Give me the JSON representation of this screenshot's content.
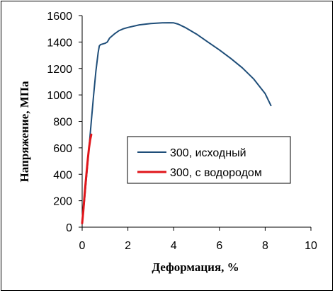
{
  "chart_data": {
    "type": "line",
    "title": "",
    "xlabel": "Деформация, %",
    "ylabel": "Напряжение, МПа",
    "xlim": [
      0,
      10
    ],
    "ylim": [
      0,
      1600
    ],
    "x_ticks": [
      "0",
      "2",
      "4",
      "6",
      "8",
      "10"
    ],
    "y_ticks": [
      "0",
      "200",
      "400",
      "600",
      "800",
      "1000",
      "1200",
      "1400",
      "1600"
    ],
    "grid": false,
    "legend_position": "center-right",
    "series": [
      {
        "name": "300, исходный",
        "color": "#1f4e79",
        "x": [
          0.0,
          0.1,
          0.2,
          0.3,
          0.4,
          0.5,
          0.6,
          0.7,
          0.75,
          0.8,
          1.0,
          1.1,
          1.2,
          1.4,
          1.6,
          1.8,
          2.0,
          2.5,
          3.0,
          3.5,
          3.8,
          4.0,
          4.2,
          4.5,
          5.0,
          5.5,
          6.0,
          6.5,
          7.0,
          7.5,
          8.0,
          8.25
        ],
        "values": [
          30,
          200,
          400,
          600,
          800,
          1000,
          1180,
          1320,
          1370,
          1380,
          1390,
          1400,
          1430,
          1460,
          1485,
          1500,
          1510,
          1530,
          1540,
          1545,
          1546,
          1545,
          1535,
          1510,
          1460,
          1400,
          1340,
          1275,
          1205,
          1120,
          1010,
          920
        ]
      },
      {
        "name": "300, с водородом",
        "color": "#e0161b",
        "x": [
          0.0,
          0.05,
          0.1,
          0.15,
          0.2,
          0.25,
          0.3,
          0.35,
          0.4
        ],
        "values": [
          30,
          120,
          230,
          330,
          430,
          520,
          600,
          660,
          700
        ]
      }
    ]
  }
}
